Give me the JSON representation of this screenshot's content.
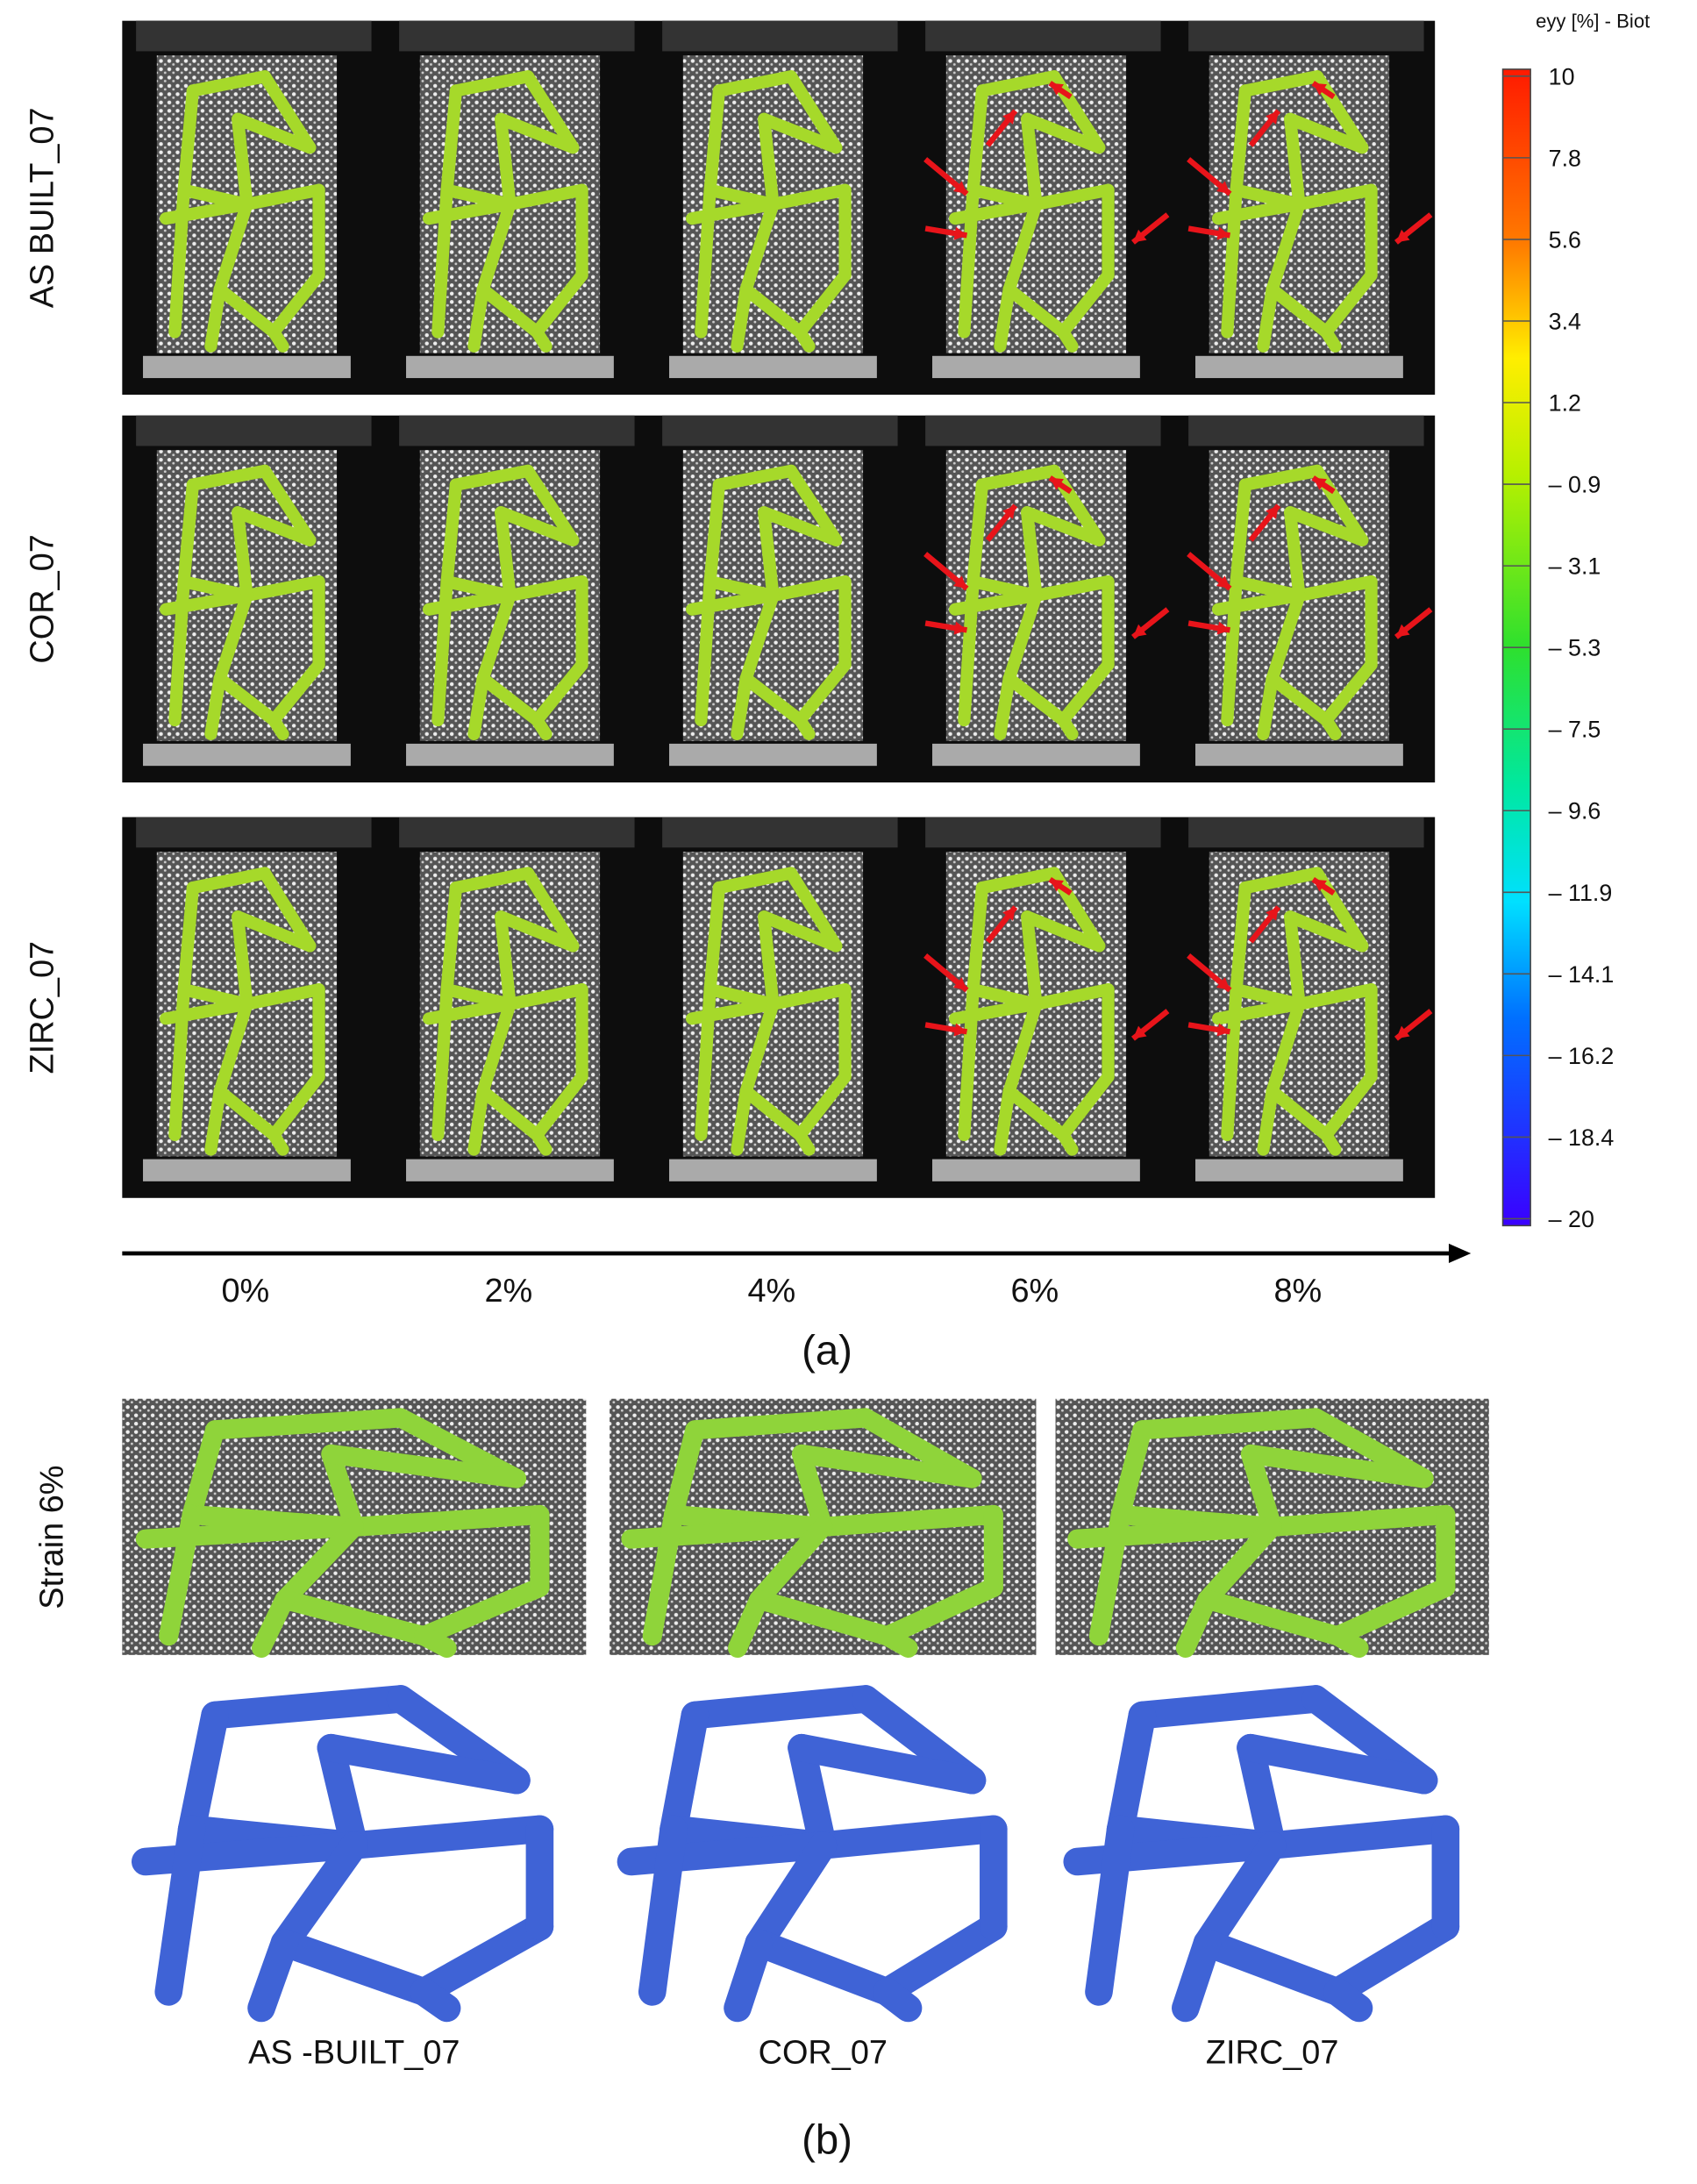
{
  "panel_a": {
    "row_labels": [
      "AS BUILT_07",
      "COR_07",
      "ZIRC_07"
    ],
    "colorbar": {
      "title": "eyy [%] - Biot",
      "ticks": [
        "10",
        "7.8",
        "5.6",
        "3.4",
        "1.2",
        "– 0.9",
        "– 3.1",
        "– 5.3",
        "– 7.5",
        "– 9.6",
        "– 11.9",
        "– 14.1",
        "– 16.2",
        "– 18.4",
        "– 20"
      ]
    },
    "strain_labels": [
      "0%",
      "2%",
      "4%",
      "6%",
      "8%"
    ],
    "caption": "(a)"
  },
  "panel_b": {
    "side_label": "Strain 6%",
    "column_labels": [
      "AS -BUILT_07",
      "COR_07",
      "ZIRC_07"
    ],
    "caption": "(b)"
  }
}
